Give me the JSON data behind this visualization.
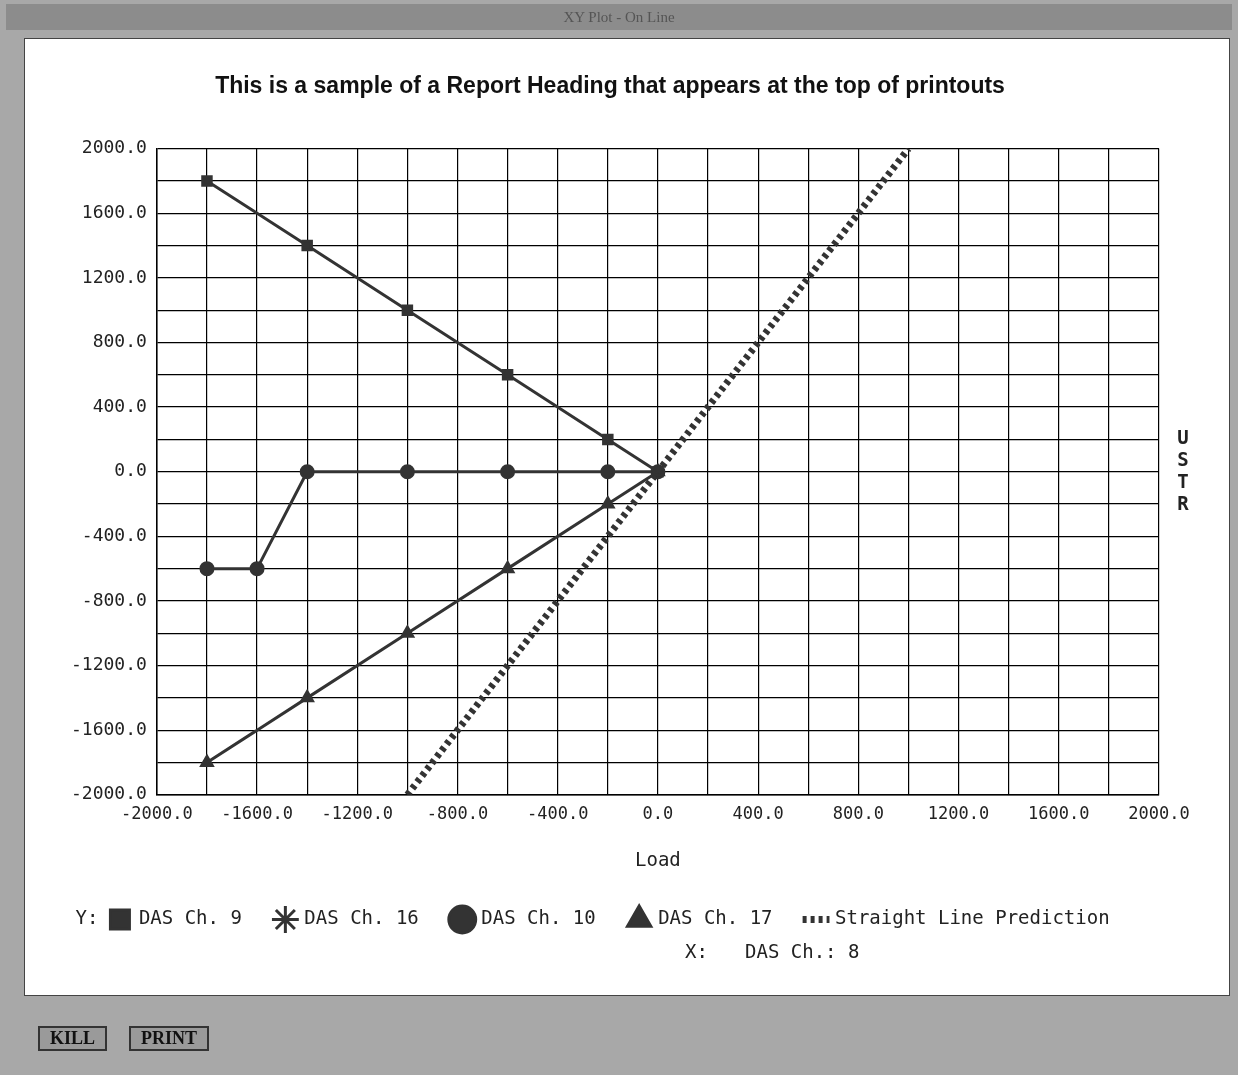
{
  "chart_data": {
    "type": "line",
    "title": "This is a sample of a Report Heading that appears at the top of printouts",
    "xlabel": "Load",
    "ylabel": "USTR",
    "xlim": [
      -2000,
      2000
    ],
    "ylim": [
      -2000,
      2000
    ],
    "xticks": [
      {
        "value": -2000,
        "label": "-2000.0"
      },
      {
        "value": -1800,
        "label": null
      },
      {
        "value": -1600,
        "label": "-1600.0"
      },
      {
        "value": -1400,
        "label": null
      },
      {
        "value": -1200,
        "label": "-1200.0"
      },
      {
        "value": -1000,
        "label": null
      },
      {
        "value": -800,
        "label": "-800.0"
      },
      {
        "value": -600,
        "label": null
      },
      {
        "value": -400,
        "label": "-400.0"
      },
      {
        "value": -200,
        "label": null
      },
      {
        "value": 0,
        "label": "0.0"
      },
      {
        "value": 200,
        "label": null
      },
      {
        "value": 400,
        "label": "400.0"
      },
      {
        "value": 600,
        "label": null
      },
      {
        "value": 800,
        "label": "800.0"
      },
      {
        "value": 1000,
        "label": null
      },
      {
        "value": 1200,
        "label": "1200.0"
      },
      {
        "value": 1400,
        "label": null
      },
      {
        "value": 1600,
        "label": "1600.0"
      },
      {
        "value": 1800,
        "label": null
      },
      {
        "value": 2000,
        "label": "2000.0"
      }
    ],
    "yticks": [
      {
        "value": -2000,
        "label": "-2000.0"
      },
      {
        "value": -1800,
        "label": null
      },
      {
        "value": -1600,
        "label": "-1600.0"
      },
      {
        "value": -1400,
        "label": null
      },
      {
        "value": -1200,
        "label": "-1200.0"
      },
      {
        "value": -1000,
        "label": null
      },
      {
        "value": -800,
        "label": "-800.0"
      },
      {
        "value": -600,
        "label": null
      },
      {
        "value": -400,
        "label": "-400.0"
      },
      {
        "value": -200,
        "label": null
      },
      {
        "value": 0,
        "label": "0.0"
      },
      {
        "value": 200,
        "label": null
      },
      {
        "value": 400,
        "label": "400.0"
      },
      {
        "value": 600,
        "label": null
      },
      {
        "value": 800,
        "label": "800.0"
      },
      {
        "value": 1000,
        "label": null
      },
      {
        "value": 1200,
        "label": "1200.0"
      },
      {
        "value": 1400,
        "label": null
      },
      {
        "value": 1600,
        "label": "1600.0"
      },
      {
        "value": 1800,
        "label": null
      },
      {
        "value": 2000,
        "label": "2000.0"
      }
    ],
    "grid": true,
    "legend": "bottom",
    "line_style": "solid",
    "series": [
      {
        "name": "DAS Ch. 9",
        "color": "#333333",
        "marker": "square",
        "x": [
          -1800,
          -1400,
          -1000,
          -600,
          -200,
          0
        ],
        "values": [
          1800,
          1400,
          1000,
          600,
          200,
          0
        ]
      },
      {
        "name": "DAS Ch. 10",
        "color": "#333333",
        "marker": "circle",
        "x": [
          -1800,
          -1600,
          -1400,
          -1000,
          -600,
          -200,
          0
        ],
        "values": [
          -600,
          -600,
          0,
          0,
          0,
          0,
          0
        ]
      },
      {
        "name": "DAS Ch. 16",
        "color": "#333333",
        "marker": "star"
      },
      {
        "name": "DAS Ch. 17",
        "color": "#333333",
        "marker": "triangle",
        "x": [
          -1800,
          -1400,
          -1000,
          -600,
          -200,
          0
        ],
        "values": [
          -1800,
          -1400,
          -1000,
          -600,
          -200,
          0
        ]
      },
      {
        "name": "Straight Line Prediction",
        "color": "#333333",
        "marker": "none",
        "line_style": "dotted",
        "x": [
          -1000,
          1000
        ],
        "values": [
          -2000,
          2000
        ]
      }
    ],
    "annotations": [
      "Y:",
      "X:",
      "DAS Ch.: 8",
      "XY Plot - On Line",
      "KILL",
      "PRINT"
    ]
  }
}
